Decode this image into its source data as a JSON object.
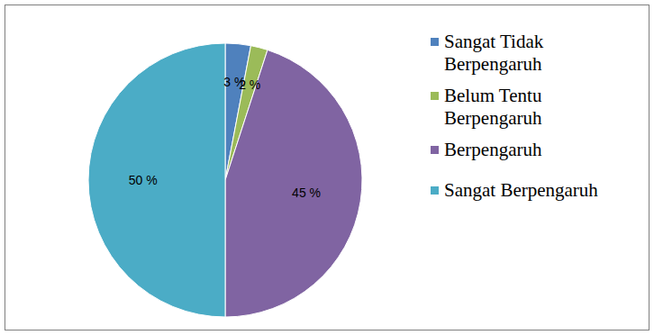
{
  "chart_data": {
    "type": "pie",
    "categories": [
      "Sangat Tidak Berpengaruh",
      "Belum Tentu Berpengaruh",
      "Berpengaruh",
      "Sangat Berpengaruh"
    ],
    "values": [
      3,
      2,
      45,
      50
    ],
    "value_labels": [
      "3 %",
      "2 %",
      "45 %",
      "50 %"
    ],
    "colors": [
      "#4f81bd",
      "#9bbb59",
      "#8064a2",
      "#4bacc6"
    ],
    "data_labels": true,
    "legend": "right"
  }
}
